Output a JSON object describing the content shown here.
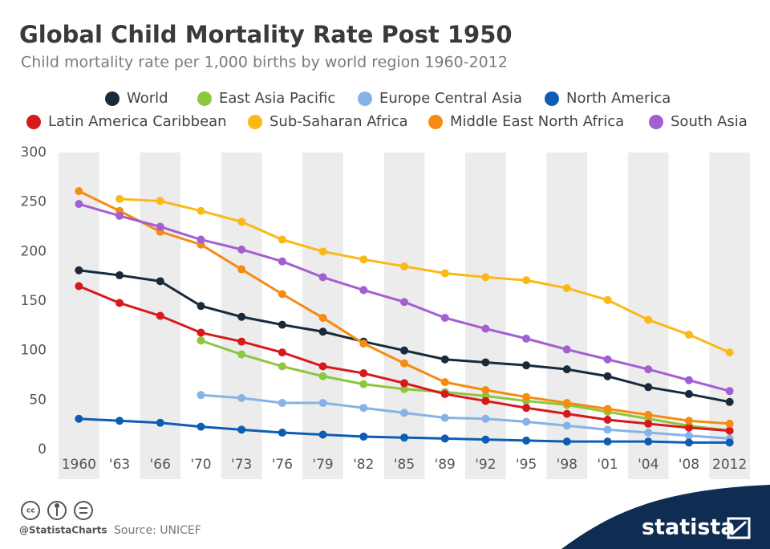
{
  "chart_data": {
    "type": "line",
    "title": "Global Child Mortality Rate Post 1950",
    "subtitle": "Child mortality rate per 1,000 births by world region 1960-2012",
    "categories": [
      "1960",
      "'63",
      "'66",
      "'70",
      "'73",
      "'76",
      "'79",
      "'82",
      "'85",
      "'89",
      "'92",
      "'95",
      "'98",
      "'01",
      "'04",
      "'08",
      "2012"
    ],
    "ylim": [
      0,
      300
    ],
    "yticks": [
      0,
      50,
      100,
      150,
      200,
      250,
      300
    ],
    "grid": false,
    "series": [
      {
        "name": "World",
        "color": "#182b3d",
        "values": [
          181,
          176,
          170,
          145,
          134,
          126,
          119,
          109,
          100,
          91,
          88,
          85,
          81,
          74,
          63,
          56,
          48
        ]
      },
      {
        "name": "East Asia Pacific",
        "color": "#8dc63f",
        "values": [
          null,
          null,
          null,
          110,
          96,
          84,
          74,
          66,
          61,
          58,
          54,
          49,
          45,
          38,
          31,
          24,
          19
        ]
      },
      {
        "name": "Europe Central Asia",
        "color": "#86b3e6",
        "values": [
          null,
          null,
          null,
          55,
          52,
          47,
          47,
          42,
          37,
          32,
          31,
          28,
          24,
          20,
          17,
          14,
          11
        ]
      },
      {
        "name": "North America",
        "color": "#0d5db3",
        "values": [
          31,
          29,
          27,
          23,
          20,
          17,
          15,
          13,
          12,
          11,
          10,
          9,
          8,
          8,
          8,
          7,
          7
        ]
      },
      {
        "name": "Latin America Caribbean",
        "color": "#d7191c",
        "values": [
          165,
          148,
          135,
          118,
          109,
          98,
          84,
          77,
          67,
          56,
          49,
          42,
          36,
          30,
          26,
          22,
          19
        ]
      },
      {
        "name": "Sub-Saharan Africa",
        "color": "#fbb917",
        "values": [
          null,
          253,
          251,
          241,
          230,
          212,
          200,
          192,
          185,
          178,
          174,
          171,
          163,
          151,
          131,
          116,
          98
        ]
      },
      {
        "name": "Middle East North Africa",
        "color": "#f58b10",
        "values": [
          261,
          241,
          220,
          207,
          182,
          157,
          133,
          107,
          87,
          68,
          60,
          53,
          47,
          41,
          35,
          29,
          26
        ]
      },
      {
        "name": "South Asia",
        "color": "#a25fd1",
        "values": [
          248,
          236,
          225,
          212,
          202,
          190,
          174,
          161,
          149,
          133,
          122,
          112,
          101,
          91,
          81,
          70,
          59
        ]
      }
    ],
    "credit": "@StatistaCharts",
    "source": "Source: UNICEF",
    "brand": "statista"
  }
}
